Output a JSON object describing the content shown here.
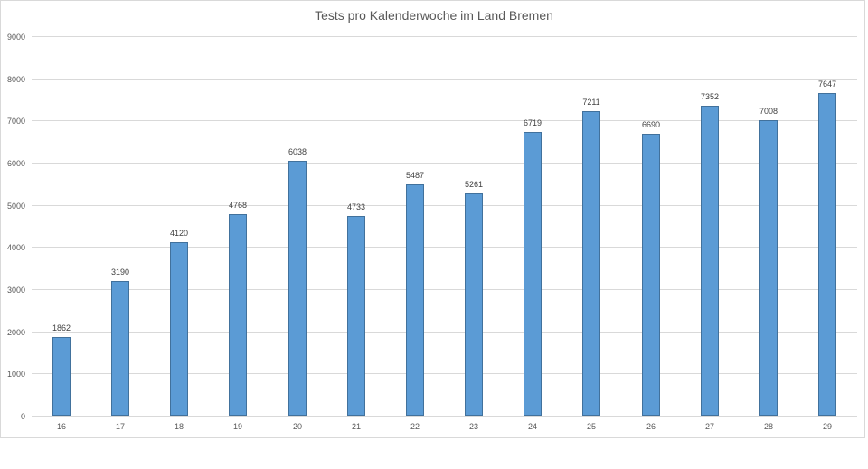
{
  "chart_data": {
    "type": "bar",
    "title": "Tests pro Kalenderwoche im Land Bremen",
    "xlabel": "",
    "ylabel": "",
    "categories": [
      "16",
      "17",
      "18",
      "19",
      "20",
      "21",
      "22",
      "23",
      "24",
      "25",
      "26",
      "27",
      "28",
      "29"
    ],
    "values": [
      1862,
      3190,
      4120,
      4768,
      6038,
      4733,
      5487,
      5261,
      6719,
      7211,
      6690,
      7352,
      7008,
      7647
    ],
    "ylim": [
      0,
      9000
    ],
    "yticks": [
      "0",
      "1000",
      "2000",
      "3000",
      "4000",
      "5000",
      "6000",
      "7000",
      "8000",
      "9000"
    ],
    "grid": true,
    "legend": "none",
    "data_labels": true,
    "bar_color": "#5b9bd5"
  }
}
